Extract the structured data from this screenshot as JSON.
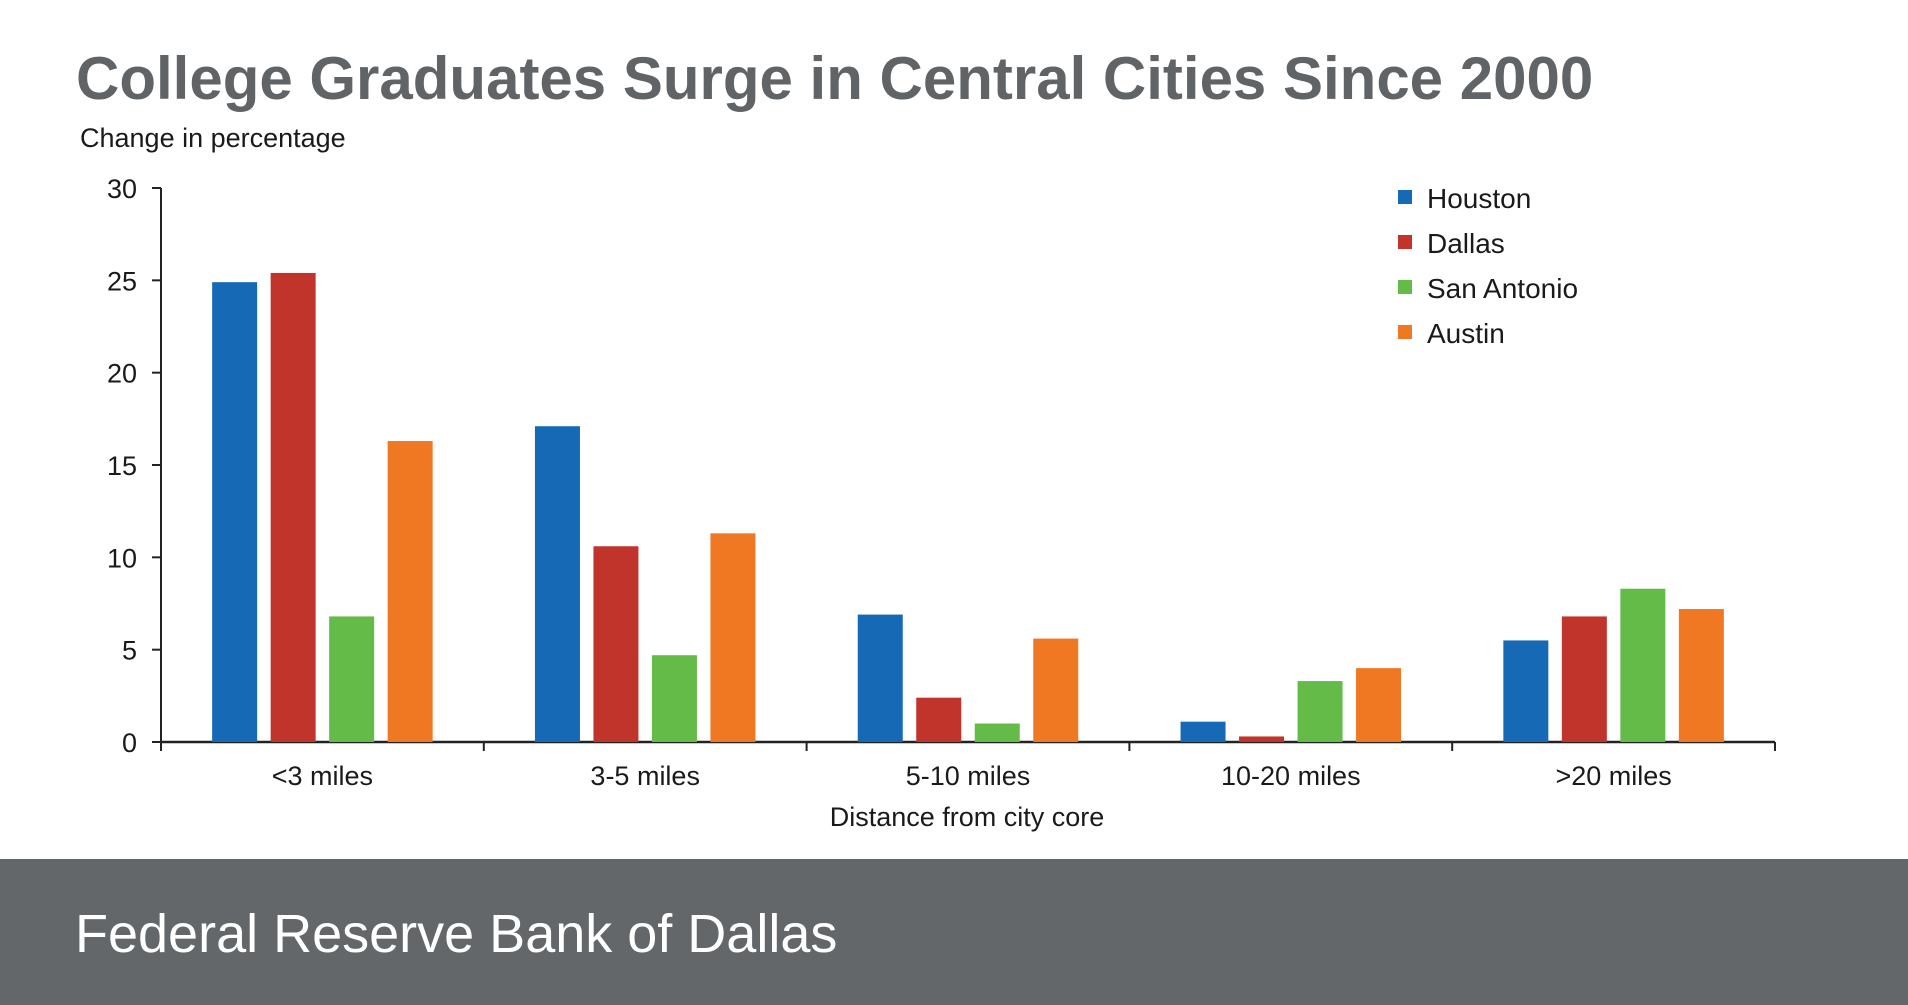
{
  "colors": {
    "houston": "#1569b5",
    "dallas": "#c0342b",
    "san_antonio": "#65bb47",
    "austin": "#f07823",
    "footer_bg": "#636769",
    "title": "#616467"
  },
  "chart_data": {
    "type": "bar",
    "title": "College Graduates Surge in Central Cities Since 2000",
    "ylabel": "Change in percentage",
    "xlabel": "Distance from city core",
    "ylim": [
      0,
      30
    ],
    "yticks": [
      0,
      5,
      10,
      15,
      20,
      25,
      30
    ],
    "grid": false,
    "legend_position": "top-right",
    "categories": [
      "<3 miles",
      "3-5 miles",
      "5-10 miles",
      "10-20 miles",
      ">20 miles"
    ],
    "series": [
      {
        "name": "Houston",
        "color": "#1569b5",
        "values": [
          24.9,
          17.1,
          6.9,
          1.1,
          5.5
        ]
      },
      {
        "name": "Dallas",
        "color": "#c0342b",
        "values": [
          25.4,
          10.6,
          2.4,
          0.3,
          6.8
        ]
      },
      {
        "name": "San Antonio",
        "color": "#65bb47",
        "values": [
          6.8,
          4.7,
          1.0,
          3.3,
          8.3
        ]
      },
      {
        "name": "Austin",
        "color": "#f07823",
        "values": [
          16.3,
          11.3,
          5.6,
          4.0,
          7.2
        ]
      }
    ]
  },
  "footer": {
    "text": "Federal Reserve Bank of Dallas"
  }
}
